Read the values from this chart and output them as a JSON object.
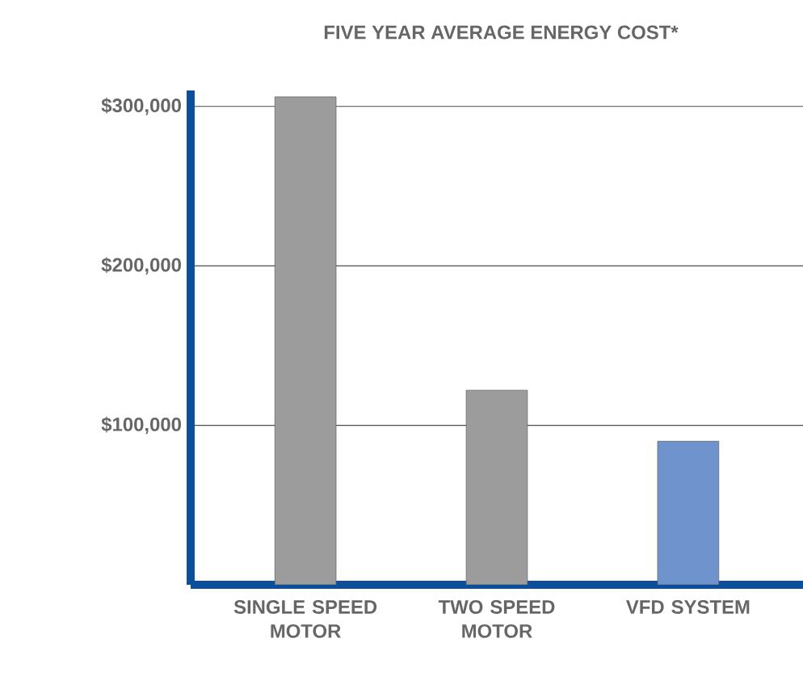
{
  "chart_data": {
    "type": "bar",
    "title": "FIVE YEAR AVERAGE ENERGY COST*",
    "categories": [
      "SINGLE SPEED MOTOR",
      "TWO SPEED MOTOR",
      "VFD SYSTEM"
    ],
    "values": [
      306000,
      122000,
      90000
    ],
    "colors": [
      "#9c9c9c",
      "#9c9c9c",
      "#6f93cc"
    ],
    "ylim": [
      0,
      310000
    ],
    "yticks": [
      {
        "value": 100000,
        "label": "$100,000"
      },
      {
        "value": 200000,
        "label": "$200,000"
      },
      {
        "value": 300000,
        "label": "$300,000"
      }
    ],
    "grid": "y"
  }
}
